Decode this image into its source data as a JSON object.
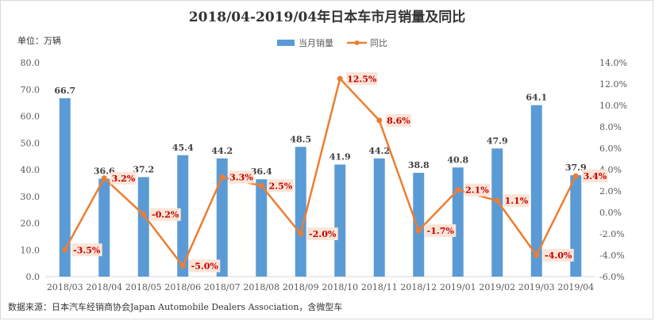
{
  "title": "2018/04-2019/04年日本车市月销量及同比",
  "unit_label": "单位：万辆",
  "source": "数据来源：日本汽车经销商协会Japan Automobile Dealers Association，含微型车",
  "colors": {
    "bar": "#5b9bd5",
    "line": "#ed7d31",
    "line_label_bg": "#fce4d6",
    "line_label_text": "#c00000"
  },
  "chart_data": {
    "type": "bar",
    "categories": [
      "2018/03",
      "2018/04",
      "2018/05",
      "2018/06",
      "2018/07",
      "2018/08",
      "2018/09",
      "2018/10",
      "2018/11",
      "2018/12",
      "2019/01",
      "2019/02",
      "2019/03",
      "2019/04"
    ],
    "series": [
      {
        "name": "当月销量",
        "type": "bar",
        "axis": "left",
        "values": [
          66.7,
          36.6,
          37.2,
          45.4,
          44.2,
          36.4,
          48.5,
          41.9,
          44.2,
          38.8,
          40.8,
          47.9,
          64.1,
          37.9
        ]
      },
      {
        "name": "同比",
        "type": "line",
        "axis": "right",
        "values": [
          -3.5,
          3.2,
          -0.2,
          -5.0,
          3.3,
          2.5,
          -2.0,
          12.5,
          8.6,
          -1.7,
          2.1,
          1.1,
          -4.0,
          3.4
        ],
        "labels": [
          "-3.5%",
          "3.2%",
          "-0.2%",
          "-5.0%",
          "3.3%",
          "2.5%",
          "-2.0%",
          "12.5%",
          "8.6%",
          "-1.7%",
          "2.1%",
          "1.1%",
          "-4.0%",
          "3.4%"
        ]
      }
    ],
    "y_left": {
      "lim": [
        0,
        80
      ],
      "ticks": [
        "0.0",
        "10.0",
        "20.0",
        "30.0",
        "40.0",
        "50.0",
        "60.0",
        "70.0",
        "80.0"
      ]
    },
    "y_right": {
      "lim": [
        -6,
        14
      ],
      "ticks": [
        "-6.0%",
        "-4.0%",
        "-2.0%",
        "0.0%",
        "2.0%",
        "4.0%",
        "6.0%",
        "8.0%",
        "10.0%",
        "12.0%",
        "14.0%"
      ]
    },
    "grid": false,
    "legend_position": "top-center"
  }
}
